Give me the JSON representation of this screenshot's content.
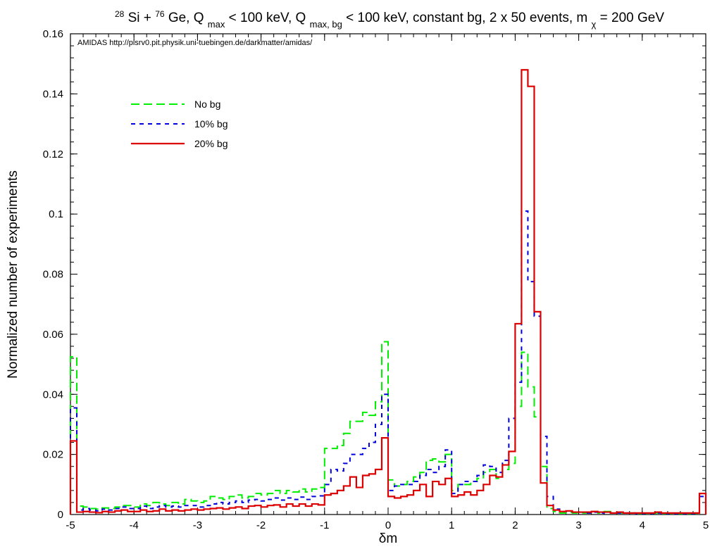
{
  "chart_data": {
    "type": "line",
    "title_parts": {
      "sup1": "28",
      "t1": "Si + ",
      "sup2": "76",
      "t2": "Ge, Q",
      "sub1": "max",
      "t3": " < 100 keV, Q",
      "sub2": "max, bg",
      "t4": " < 100 keV, constant bg, 2 x 50 events, m",
      "sub3": "χ",
      "t5": " = 200 GeV"
    },
    "watermark": "AMIDAS   http://pisrv0.pit.physik.uni-tuebingen.de/darkmatter/amidas/",
    "xlabel": "δm",
    "ylabel": "Normalized number of experiments",
    "xlim": [
      -5,
      5
    ],
    "ylim": [
      0,
      0.16
    ],
    "xticks": [
      "-5",
      "-4",
      "-3",
      "-2",
      "-1",
      "0",
      "1",
      "2",
      "3",
      "4",
      "5"
    ],
    "yticks": [
      "0",
      "0.02",
      "0.04",
      "0.06",
      "0.08",
      "0.1",
      "0.12",
      "0.14",
      "0.16"
    ],
    "bin_width": 0.1,
    "legend_position": "top-left",
    "series": [
      {
        "name": "No bg",
        "color": "#00ee00",
        "dash": "dashed",
        "values": [
          0.0525,
          0.0028,
          0.0025,
          0.002,
          0.0018,
          0.0022,
          0.002,
          0.0025,
          0.003,
          0.003,
          0.0025,
          0.0035,
          0.003,
          0.004,
          0.0035,
          0.003,
          0.004,
          0.0035,
          0.005,
          0.0045,
          0.004,
          0.0045,
          0.006,
          0.0055,
          0.005,
          0.006,
          0.0065,
          0.0055,
          0.006,
          0.007,
          0.0065,
          0.007,
          0.008,
          0.007,
          0.008,
          0.0075,
          0.0085,
          0.0075,
          0.0085,
          0.009,
          0.022,
          0.022,
          0.023,
          0.027,
          0.031,
          0.031,
          0.034,
          0.033,
          0.0375,
          0.0575,
          0.0115,
          0.0095,
          0.01,
          0.011,
          0.0125,
          0.014,
          0.018,
          0.0185,
          0.0175,
          0.02,
          0.008,
          0.01,
          0.01,
          0.011,
          0.012,
          0.014,
          0.015,
          0.012,
          0.015,
          0.017,
          0.036,
          0.054,
          0.0425,
          0.0325,
          0.016,
          0.002,
          0.001,
          0.0005,
          0.0008,
          0.0005,
          0.0005,
          0.0005,
          0.001,
          0.0005,
          0.001,
          0.0005,
          0.0005,
          0.0005,
          0.0005,
          0.0003,
          0.0003,
          0.0003,
          0.0005,
          0.0003,
          0.0003,
          0.0003,
          0.0003,
          0.0003,
          0.0003,
          0.007
        ]
      },
      {
        "name": "10% bg",
        "color": "#0000dd",
        "dash": "dotted",
        "values": [
          0.0355,
          0.0015,
          0.002,
          0.0015,
          0.0012,
          0.0018,
          0.0015,
          0.002,
          0.0025,
          0.002,
          0.002,
          0.0028,
          0.002,
          0.0025,
          0.003,
          0.0025,
          0.0028,
          0.0025,
          0.003,
          0.003,
          0.0025,
          0.003,
          0.0035,
          0.004,
          0.0035,
          0.004,
          0.0045,
          0.004,
          0.0048,
          0.005,
          0.0045,
          0.005,
          0.0055,
          0.0048,
          0.0055,
          0.005,
          0.0058,
          0.005,
          0.006,
          0.0062,
          0.01,
          0.015,
          0.0145,
          0.017,
          0.02,
          0.02,
          0.022,
          0.024,
          0.03,
          0.04,
          0.008,
          0.0095,
          0.01,
          0.01,
          0.011,
          0.013,
          0.015,
          0.014,
          0.016,
          0.0215,
          0.007,
          0.01,
          0.011,
          0.011,
          0.013,
          0.0165,
          0.016,
          0.014,
          0.018,
          0.032,
          0.044,
          0.101,
          0.0775,
          0.066,
          0.026,
          0.006,
          0.0018,
          0.001,
          0.001,
          0.0008,
          0.0008,
          0.0005,
          0.0008,
          0.0005,
          0.0008,
          0.0005,
          0.0005,
          0.0005,
          0.0005,
          0.0003,
          0.0003,
          0.0003,
          0.0005,
          0.0003,
          0.0003,
          0.0003,
          0.0003,
          0.0003,
          0.0003,
          0.006
        ]
      },
      {
        "name": "20% bg",
        "color": "#dd0000",
        "dash": "solid",
        "values": [
          0.0245,
          0.0008,
          0.001,
          0.0008,
          0.0006,
          0.001,
          0.0008,
          0.0012,
          0.0015,
          0.001,
          0.001,
          0.0015,
          0.001,
          0.0012,
          0.0018,
          0.0012,
          0.0015,
          0.0012,
          0.0015,
          0.0018,
          0.0015,
          0.0018,
          0.002,
          0.0022,
          0.0018,
          0.0022,
          0.0025,
          0.002,
          0.0028,
          0.003,
          0.0025,
          0.003,
          0.0032,
          0.0025,
          0.0035,
          0.0028,
          0.0035,
          0.0028,
          0.0035,
          0.0032,
          0.0065,
          0.007,
          0.008,
          0.0095,
          0.0125,
          0.009,
          0.013,
          0.0135,
          0.015,
          0.0255,
          0.006,
          0.0055,
          0.006,
          0.0065,
          0.008,
          0.01,
          0.006,
          0.011,
          0.01,
          0.012,
          0.006,
          0.0065,
          0.0075,
          0.0065,
          0.008,
          0.01,
          0.013,
          0.0125,
          0.0165,
          0.021,
          0.0635,
          0.148,
          0.1425,
          0.0675,
          0.0105,
          0.003,
          0.0015,
          0.001,
          0.0012,
          0.0008,
          0.0008,
          0.0008,
          0.001,
          0.0008,
          0.0008,
          0.0005,
          0.0008,
          0.0005,
          0.0005,
          0.0005,
          0.0005,
          0.0005,
          0.0008,
          0.0005,
          0.0005,
          0.0005,
          0.0005,
          0.0005,
          0.0005,
          0.007
        ]
      }
    ]
  }
}
